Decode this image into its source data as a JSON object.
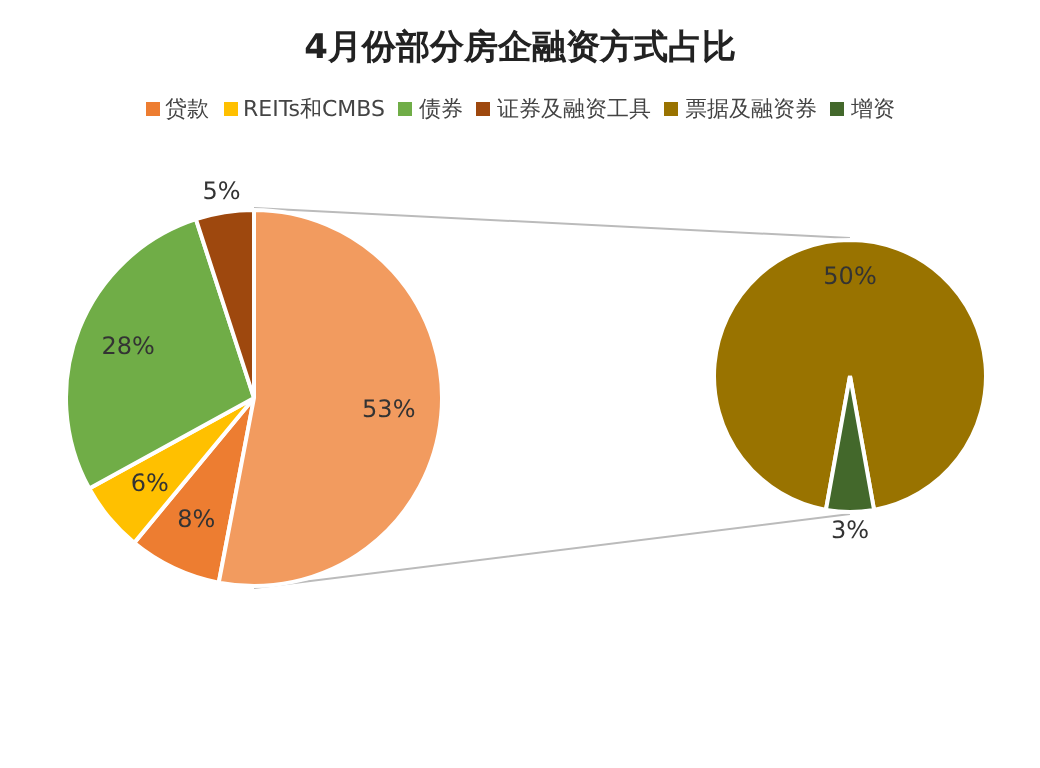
{
  "chart_data": [
    {
      "type": "pie",
      "title": "4月份部分房企融资方式占比",
      "legend": "top",
      "categories": [
        "贷款",
        "REITs和CMBS",
        "债券",
        "证券及融资工具",
        null
      ],
      "values": [
        8,
        6,
        28,
        5,
        53
      ],
      "value_labels": [
        "8%",
        "6%",
        "28%",
        "5%",
        "53%"
      ],
      "colors": [
        "#ed7d31",
        "#ffc000",
        "#70ad47",
        "#9e480e",
        "#f29b5f"
      ]
    },
    {
      "type": "pie",
      "legend": "top",
      "categories": [
        "票据及融资券",
        "增资"
      ],
      "values": [
        50,
        3
      ],
      "value_labels": [
        "50%",
        "3%"
      ],
      "colors": [
        "#997300",
        "#43682b"
      ]
    }
  ]
}
